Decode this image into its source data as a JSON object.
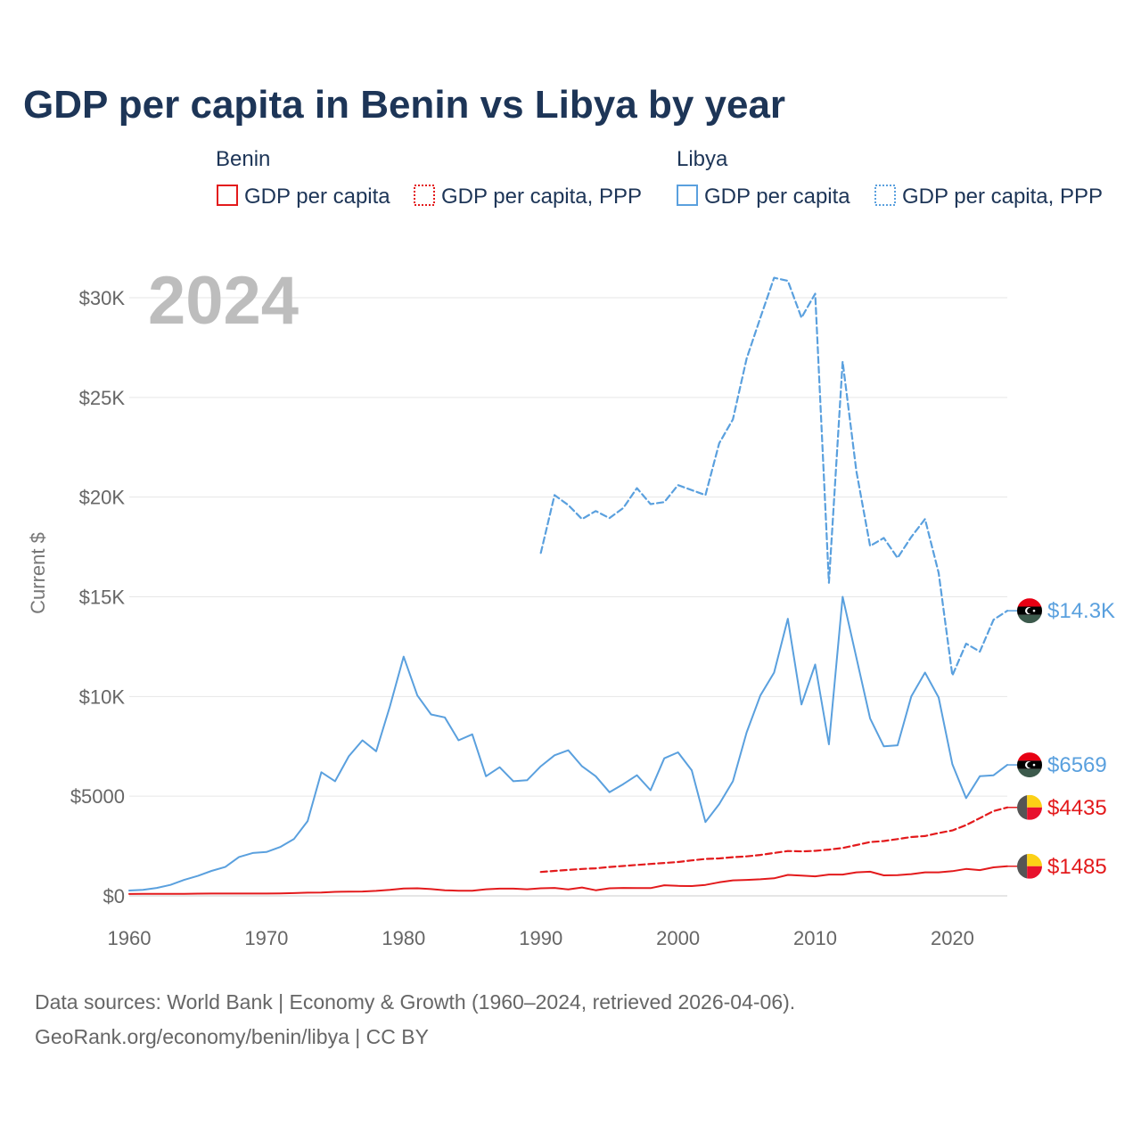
{
  "chart_data": {
    "type": "line",
    "title": "GDP per capita in Benin vs Libya by year",
    "year_label": "2024",
    "xlabel": "",
    "ylabel": "Current $",
    "xlim": [
      1960,
      2024
    ],
    "ylim": [
      0,
      31000
    ],
    "grid": true,
    "y_ticks": [
      {
        "value": 0,
        "label": "$0"
      },
      {
        "value": 5000,
        "label": "$5000"
      },
      {
        "value": 10000,
        "label": "$10K"
      },
      {
        "value": 15000,
        "label": "$15K"
      },
      {
        "value": 20000,
        "label": "$20K"
      },
      {
        "value": 25000,
        "label": "$25K"
      },
      {
        "value": 30000,
        "label": "$30K"
      }
    ],
    "x_ticks": [
      1960,
      1970,
      1980,
      1990,
      2000,
      2010,
      2020
    ],
    "legend": {
      "groups": [
        {
          "name": "Benin",
          "entries": [
            "GDP per capita",
            "GDP per capita, PPP"
          ],
          "color": "#e31a1c"
        },
        {
          "name": "Libya",
          "entries": [
            "GDP per capita",
            "GDP per capita, PPP"
          ],
          "color": "#5aa0de"
        }
      ]
    },
    "series": [
      {
        "name": "Libya GDP per capita",
        "country": "Libya",
        "color": "#5aa0de",
        "dash": "solid",
        "end_label": "$6569",
        "x": [
          1960,
          1961,
          1962,
          1963,
          1964,
          1965,
          1966,
          1967,
          1968,
          1969,
          1970,
          1971,
          1972,
          1973,
          1974,
          1975,
          1976,
          1977,
          1978,
          1979,
          1980,
          1981,
          1982,
          1983,
          1984,
          1985,
          1986,
          1987,
          1988,
          1989,
          1990,
          1991,
          1992,
          1993,
          1994,
          1995,
          1996,
          1997,
          1998,
          1999,
          2000,
          2001,
          2002,
          2003,
          2004,
          2005,
          2006,
          2007,
          2008,
          2009,
          2010,
          2011,
          2012,
          2013,
          2014,
          2015,
          2016,
          2017,
          2018,
          2019,
          2020,
          2021,
          2022,
          2023,
          2024
        ],
        "values": [
          270,
          300,
          400,
          550,
          800,
          1000,
          1250,
          1450,
          1950,
          2150,
          2200,
          2450,
          2850,
          3750,
          6200,
          5750,
          7000,
          7800,
          7250,
          9500,
          12000,
          10050,
          9100,
          8950,
          7800,
          8100,
          6000,
          6450,
          5750,
          5800,
          6500,
          7050,
          7300,
          6500,
          6000,
          5200,
          5600,
          6050,
          5300,
          6900,
          7200,
          6300,
          3700,
          4600,
          5750,
          8200,
          10050,
          11200,
          13900,
          9600,
          11600,
          7600,
          15000,
          11950,
          8900,
          7500,
          7550,
          10000,
          11200,
          9950,
          6600,
          4900,
          6000,
          6050,
          6569
        ]
      },
      {
        "name": "Libya GDP per capita, PPP",
        "country": "Libya",
        "color": "#5aa0de",
        "dash": "dashed",
        "end_label": "$14.3K",
        "x": [
          1990,
          1991,
          1992,
          1993,
          1994,
          1995,
          1996,
          1997,
          1998,
          1999,
          2000,
          2001,
          2002,
          2003,
          2004,
          2005,
          2006,
          2007,
          2008,
          2009,
          2010,
          2011,
          2012,
          2013,
          2014,
          2015,
          2016,
          2017,
          2018,
          2019,
          2020,
          2021,
          2022,
          2023,
          2024
        ],
        "values": [
          17200,
          20100,
          19600,
          18900,
          19300,
          18950,
          19450,
          20450,
          19650,
          19750,
          20600,
          20350,
          20100,
          22700,
          23900,
          26950,
          29000,
          31000,
          30850,
          29000,
          30200,
          15700,
          26800,
          21300,
          17550,
          17950,
          16950,
          18000,
          18900,
          16200,
          11050,
          12650,
          12250,
          13850,
          14300
        ]
      },
      {
        "name": "Benin GDP per capita",
        "country": "Benin",
        "color": "#e31a1c",
        "dash": "solid",
        "end_label": "$1485",
        "x": [
          1960,
          1961,
          1962,
          1963,
          1964,
          1965,
          1966,
          1967,
          1968,
          1969,
          1970,
          1971,
          1972,
          1973,
          1974,
          1975,
          1976,
          1977,
          1978,
          1979,
          1980,
          1981,
          1982,
          1983,
          1984,
          1985,
          1986,
          1987,
          1988,
          1989,
          1990,
          1991,
          1992,
          1993,
          1994,
          1995,
          1996,
          1997,
          1998,
          1999,
          2000,
          2001,
          2002,
          2003,
          2004,
          2005,
          2006,
          2007,
          2008,
          2009,
          2010,
          2011,
          2012,
          2013,
          2014,
          2015,
          2016,
          2017,
          2018,
          2019,
          2020,
          2021,
          2022,
          2023,
          2024
        ],
        "values": [
          95,
          100,
          100,
          100,
          105,
          110,
          115,
          115,
          115,
          115,
          115,
          120,
          140,
          160,
          170,
          200,
          210,
          220,
          250,
          300,
          370,
          380,
          340,
          280,
          260,
          260,
          330,
          360,
          360,
          330,
          380,
          400,
          320,
          420,
          280,
          380,
          400,
          390,
          390,
          530,
          500,
          490,
          550,
          680,
          780,
          800,
          830,
          880,
          1050,
          1020,
          980,
          1070,
          1070,
          1180,
          1210,
          1030,
          1040,
          1090,
          1180,
          1180,
          1240,
          1350,
          1290,
          1430,
          1485
        ]
      },
      {
        "name": "Benin GDP per capita, PPP",
        "country": "Benin",
        "color": "#e31a1c",
        "dash": "dashed",
        "end_label": "$4435",
        "x": [
          1990,
          1991,
          1992,
          1993,
          1994,
          1995,
          1996,
          1997,
          1998,
          1999,
          2000,
          2001,
          2002,
          2003,
          2004,
          2005,
          2006,
          2007,
          2008,
          2009,
          2010,
          2011,
          2012,
          2013,
          2014,
          2015,
          2016,
          2017,
          2018,
          2019,
          2020,
          2021,
          2022,
          2023,
          2024
        ],
        "values": [
          1200,
          1250,
          1300,
          1350,
          1380,
          1450,
          1500,
          1550,
          1600,
          1650,
          1700,
          1780,
          1850,
          1880,
          1940,
          1980,
          2050,
          2150,
          2250,
          2230,
          2260,
          2320,
          2400,
          2550,
          2700,
          2750,
          2850,
          2950,
          3000,
          3150,
          3280,
          3550,
          3900,
          4250,
          4435
        ]
      }
    ],
    "source_line1": "Data sources: World Bank | Economy & Growth (1960–2024, retrieved 2026-04-06).",
    "source_line2": "GeoRank.org/economy/benin/libya | CC BY"
  }
}
